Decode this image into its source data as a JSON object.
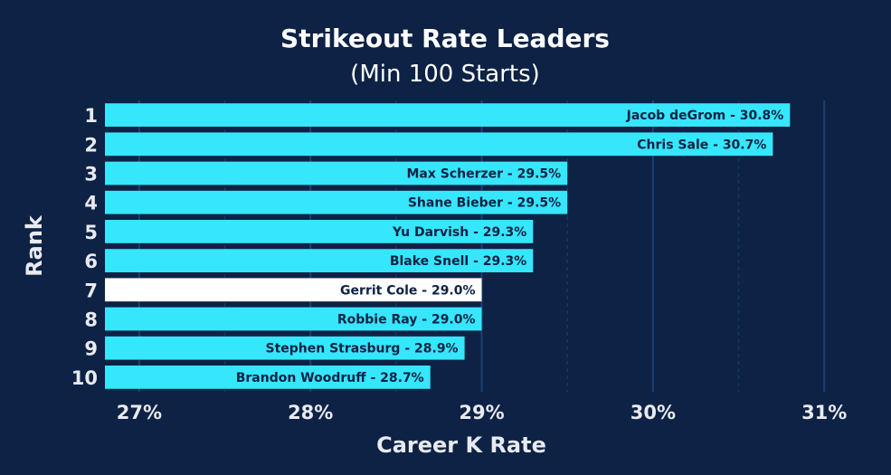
{
  "chart_data": {
    "type": "bar",
    "orientation": "horizontal",
    "title": "Strikeout Rate Leaders",
    "subtitle": "(Min 100 Starts)",
    "xlabel": "Career K Rate",
    "ylabel": "Rank",
    "xlim": [
      26.8,
      31.3
    ],
    "xticks": [
      "27%",
      "28%",
      "29%",
      "30%",
      "31%"
    ],
    "xtick_values": [
      27,
      28,
      29,
      30,
      31
    ],
    "grid": "vertical",
    "bar_color": "#36e6fb",
    "highlight_color": "#ffffff",
    "background": "#0d2244",
    "bars": [
      {
        "rank": "1",
        "label": "Jacob deGrom  -  30.8%",
        "value": 30.8,
        "highlight": false
      },
      {
        "rank": "2",
        "label": "Chris Sale  -  30.7%",
        "value": 30.7,
        "highlight": false
      },
      {
        "rank": "3",
        "label": "Max Scherzer  -  29.5%",
        "value": 29.5,
        "highlight": false
      },
      {
        "rank": "4",
        "label": "Shane Bieber  -  29.5%",
        "value": 29.5,
        "highlight": false
      },
      {
        "rank": "5",
        "label": "Yu Darvish  -  29.3%",
        "value": 29.3,
        "highlight": false
      },
      {
        "rank": "6",
        "label": "Blake Snell  -  29.3%",
        "value": 29.3,
        "highlight": false
      },
      {
        "rank": "7",
        "label": "Gerrit Cole  -  29.0%",
        "value": 29.0,
        "highlight": true
      },
      {
        "rank": "8",
        "label": "Robbie Ray  -  29.0%",
        "value": 29.0,
        "highlight": false
      },
      {
        "rank": "9",
        "label": "Stephen Strasburg  -  28.9%",
        "value": 28.9,
        "highlight": false
      },
      {
        "rank": "10",
        "label": "Brandon Woodruff  -  28.7%",
        "value": 28.7,
        "highlight": false
      }
    ]
  }
}
